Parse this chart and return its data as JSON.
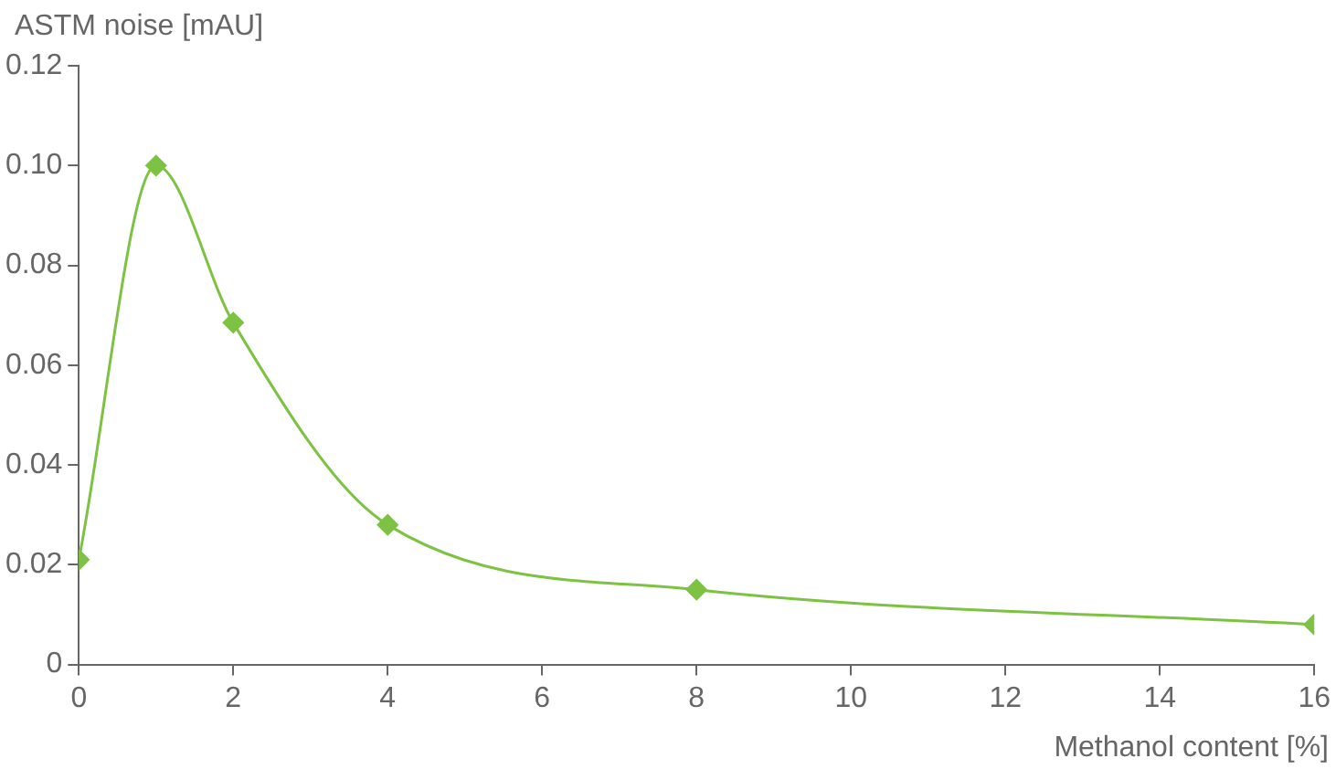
{
  "chart_data": {
    "type": "line",
    "xlabel": "Methanol content [%]",
    "ylabel": "ASTM noise [mAU]",
    "x": [
      0,
      1,
      2,
      4,
      8,
      16
    ],
    "series": [
      {
        "color": "#7dc242",
        "values": [
          0.021,
          0.1,
          0.0685,
          0.028,
          0.015,
          0.008
        ]
      }
    ],
    "xlim": [
      0,
      16
    ],
    "xticks": [
      0,
      2,
      4,
      6,
      8,
      10,
      12,
      14,
      16
    ],
    "ylim": [
      0,
      0.12
    ],
    "yticks": [
      0,
      0.02,
      0.04,
      0.06,
      0.08,
      {
        "value": 0.1,
        "label": "0.10"
      },
      0.12
    ],
    "grid": false,
    "marker": "diamond",
    "line_style": "solid"
  }
}
